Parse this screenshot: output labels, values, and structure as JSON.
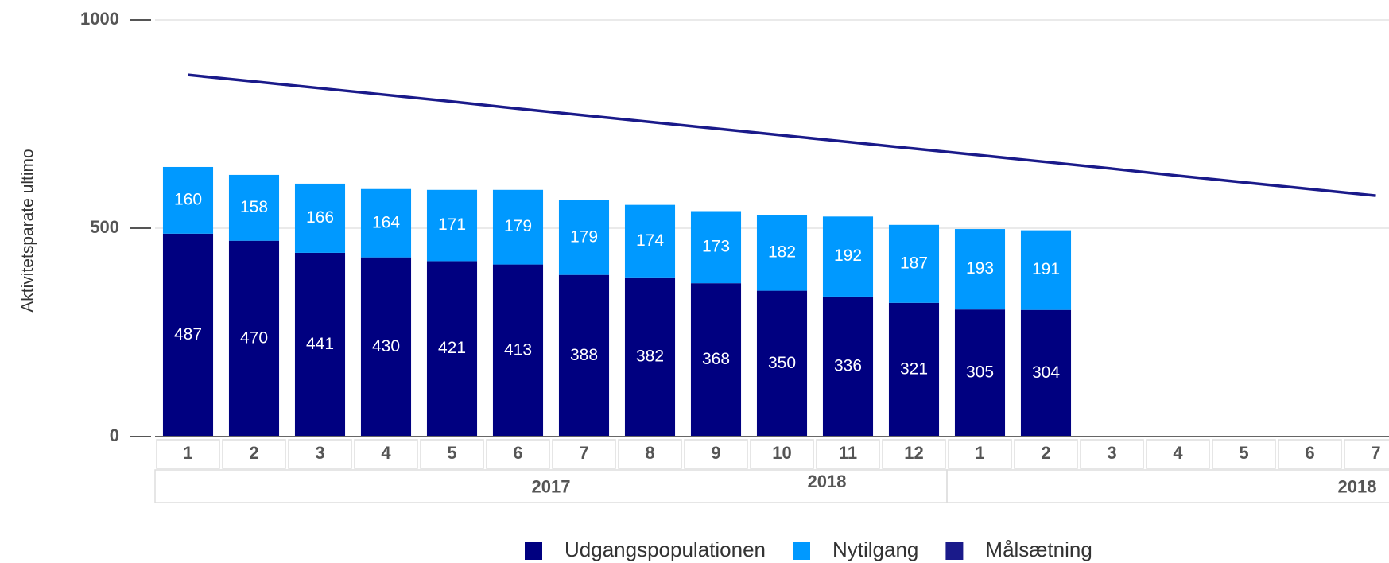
{
  "chart_data": {
    "type": "bar",
    "stacked": true,
    "y_label": "Aktivitetsparate ultimo",
    "categories": [
      "1",
      "2",
      "3",
      "4",
      "5",
      "6",
      "7",
      "8",
      "9",
      "10",
      "11",
      "12",
      "1",
      "2",
      "3",
      "4",
      "5",
      "6",
      "7"
    ],
    "x_groups": [
      {
        "label": "2017",
        "start": 0,
        "end": 12
      },
      {
        "label": "2018",
        "start": 12,
        "end": 19
      }
    ],
    "annotations": [
      "2018"
    ],
    "series": [
      {
        "name": "Udgangspopulationen",
        "color": "#000080",
        "values": [
          487,
          470,
          441,
          430,
          421,
          413,
          388,
          382,
          368,
          350,
          336,
          321,
          305,
          304,
          null,
          null,
          null,
          null,
          null
        ]
      },
      {
        "name": "Nytilgang",
        "color": "#0099ff",
        "values": [
          160,
          158,
          166,
          164,
          171,
          179,
          179,
          174,
          173,
          182,
          192,
          187,
          193,
          191,
          null,
          null,
          null,
          null,
          null
        ]
      },
      {
        "name": "Målsætning",
        "color": "#1a1a8a",
        "type": "line",
        "values": [
          868,
          852,
          836,
          820,
          804,
          787,
          771,
          755,
          739,
          723,
          707,
          691,
          675,
          659,
          643,
          626,
          610,
          594,
          578
        ]
      }
    ],
    "ylim": [
      0,
      1000
    ],
    "yticks": [
      0,
      500,
      1000
    ],
    "grid": true
  }
}
